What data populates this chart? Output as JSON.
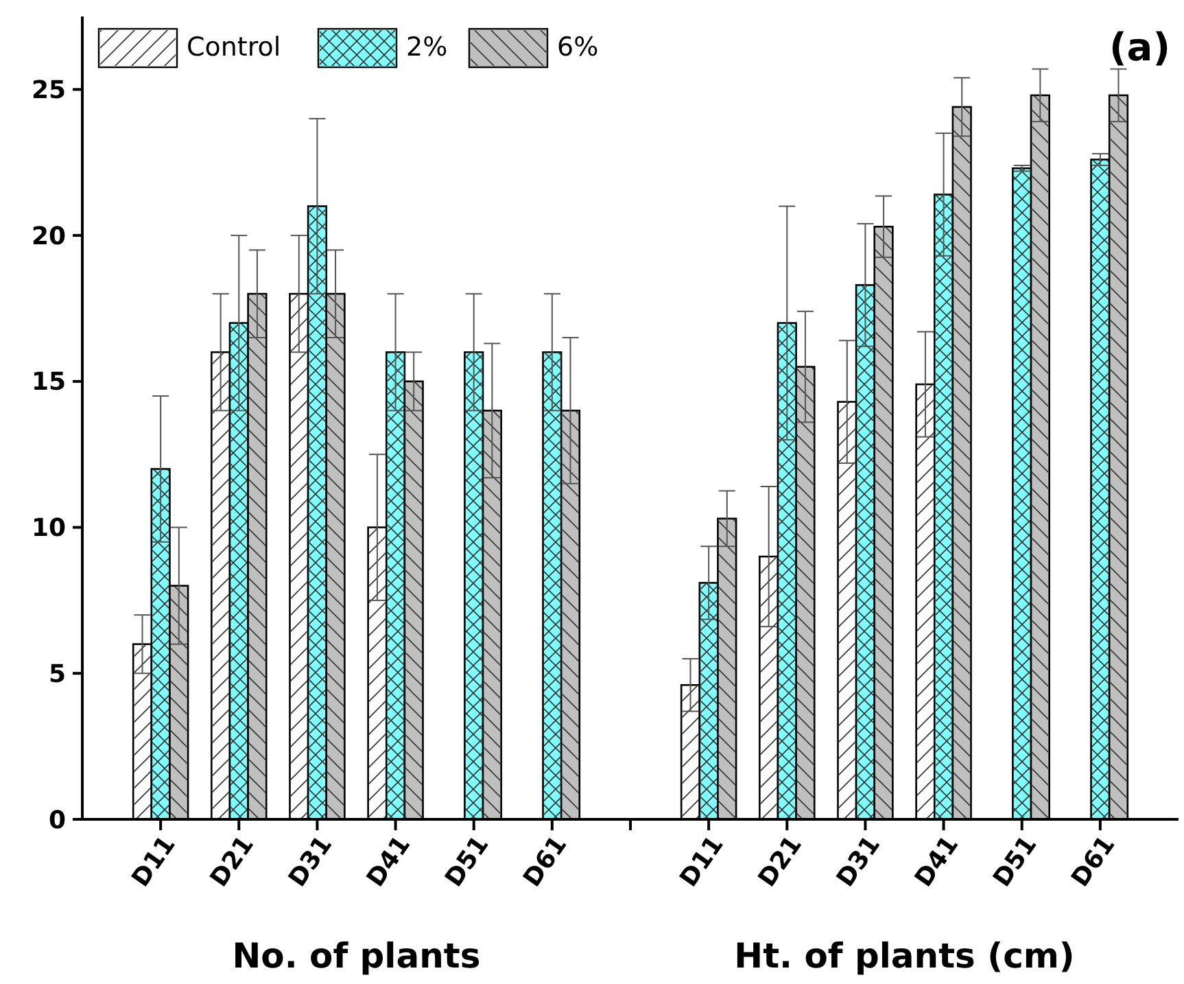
{
  "chart_data": {
    "type": "bar",
    "categories": [
      "D11",
      "D21",
      "D31",
      "D41",
      "D51",
      "D61",
      null,
      "D11",
      "D21",
      "D31",
      "D41",
      "D51",
      "D61"
    ],
    "series": [
      {
        "name": "Control",
        "color": "#ffffff",
        "values": [
          6,
          16,
          18,
          10,
          null,
          null,
          null,
          4.6,
          9.0,
          14.3,
          14.9,
          null,
          null
        ],
        "errors": [
          1,
          2,
          2,
          2.5,
          null,
          null,
          null,
          0.9,
          2.4,
          2.1,
          1.8,
          null,
          null
        ]
      },
      {
        "name": "2%",
        "color": "#80ffff",
        "values": [
          12,
          17,
          21,
          16,
          16,
          16,
          null,
          8.1,
          17.0,
          18.3,
          21.4,
          22.3,
          22.6
        ],
        "errors": [
          2.5,
          3,
          3,
          2,
          2,
          2,
          null,
          1.25,
          4,
          2.1,
          2.1,
          0.1,
          0.2
        ]
      },
      {
        "name": "6%",
        "color": "#c0c0c0",
        "values": [
          8,
          18,
          18,
          15,
          14,
          14,
          null,
          10.3,
          15.5,
          20.3,
          24.4,
          24.8,
          24.8
        ],
        "errors": [
          2,
          1.5,
          1.5,
          1,
          2.3,
          2.5,
          null,
          0.95,
          1.9,
          1.05,
          1,
          0.9,
          0.9
        ]
      }
    ],
    "ylim": [
      0,
      27.5
    ],
    "yticks": [
      0,
      5,
      10,
      15,
      20,
      25
    ],
    "grid": false,
    "legend": "top left",
    "annotations": [
      "(a)",
      "No. of plants",
      "Ht. of plants (cm)"
    ]
  }
}
